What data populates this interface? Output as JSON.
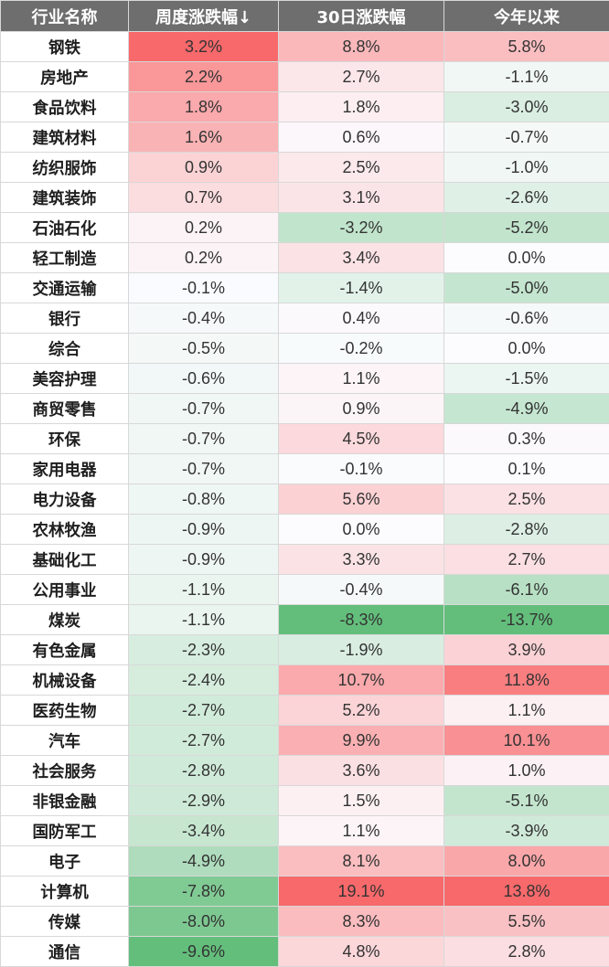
{
  "chart_data": {
    "type": "table",
    "columns": [
      "行业名称",
      "周度涨跌幅↓",
      "30日涨跌幅",
      "今年以来"
    ],
    "rows": [
      {
        "industry": "钢铁",
        "week": "3.2%",
        "d30": "8.8%",
        "ytd": "5.8%"
      },
      {
        "industry": "房地产",
        "week": "2.2%",
        "d30": "2.7%",
        "ytd": "-1.1%"
      },
      {
        "industry": "食品饮料",
        "week": "1.8%",
        "d30": "1.8%",
        "ytd": "-3.0%"
      },
      {
        "industry": "建筑材料",
        "week": "1.6%",
        "d30": "0.6%",
        "ytd": "-0.7%"
      },
      {
        "industry": "纺织服饰",
        "week": "0.9%",
        "d30": "2.5%",
        "ytd": "-1.0%"
      },
      {
        "industry": "建筑装饰",
        "week": "0.7%",
        "d30": "3.1%",
        "ytd": "-2.6%"
      },
      {
        "industry": "石油石化",
        "week": "0.2%",
        "d30": "-3.2%",
        "ytd": "-5.2%"
      },
      {
        "industry": "轻工制造",
        "week": "0.2%",
        "d30": "3.4%",
        "ytd": "0.0%"
      },
      {
        "industry": "交通运输",
        "week": "-0.1%",
        "d30": "-1.4%",
        "ytd": "-5.0%"
      },
      {
        "industry": "银行",
        "week": "-0.4%",
        "d30": "0.4%",
        "ytd": "-0.6%"
      },
      {
        "industry": "综合",
        "week": "-0.5%",
        "d30": "-0.2%",
        "ytd": "0.0%"
      },
      {
        "industry": "美容护理",
        "week": "-0.6%",
        "d30": "1.1%",
        "ytd": "-1.5%"
      },
      {
        "industry": "商贸零售",
        "week": "-0.7%",
        "d30": "0.9%",
        "ytd": "-4.9%"
      },
      {
        "industry": "环保",
        "week": "-0.7%",
        "d30": "4.5%",
        "ytd": "0.3%"
      },
      {
        "industry": "家用电器",
        "week": "-0.7%",
        "d30": "-0.1%",
        "ytd": "0.1%"
      },
      {
        "industry": "电力设备",
        "week": "-0.8%",
        "d30": "5.6%",
        "ytd": "2.5%"
      },
      {
        "industry": "农林牧渔",
        "week": "-0.9%",
        "d30": "0.0%",
        "ytd": "-2.8%"
      },
      {
        "industry": "基础化工",
        "week": "-0.9%",
        "d30": "3.3%",
        "ytd": "2.7%"
      },
      {
        "industry": "公用事业",
        "week": "-1.1%",
        "d30": "-0.4%",
        "ytd": "-6.1%"
      },
      {
        "industry": "煤炭",
        "week": "-1.1%",
        "d30": "-8.3%",
        "ytd": "-13.7%"
      },
      {
        "industry": "有色金属",
        "week": "-2.3%",
        "d30": "-1.9%",
        "ytd": "3.9%"
      },
      {
        "industry": "机械设备",
        "week": "-2.4%",
        "d30": "10.7%",
        "ytd": "11.8%"
      },
      {
        "industry": "医药生物",
        "week": "-2.7%",
        "d30": "5.2%",
        "ytd": "1.1%"
      },
      {
        "industry": "汽车",
        "week": "-2.7%",
        "d30": "9.9%",
        "ytd": "10.1%"
      },
      {
        "industry": "社会服务",
        "week": "-2.8%",
        "d30": "3.6%",
        "ytd": "1.0%"
      },
      {
        "industry": "非银金融",
        "week": "-2.9%",
        "d30": "1.5%",
        "ytd": "-5.1%"
      },
      {
        "industry": "国防军工",
        "week": "-3.4%",
        "d30": "1.1%",
        "ytd": "-3.9%"
      },
      {
        "industry": "电子",
        "week": "-4.9%",
        "d30": "8.1%",
        "ytd": "8.0%"
      },
      {
        "industry": "计算机",
        "week": "-7.8%",
        "d30": "19.1%",
        "ytd": "13.8%"
      },
      {
        "industry": "传媒",
        "week": "-8.0%",
        "d30": "8.3%",
        "ytd": "5.5%"
      },
      {
        "industry": "通信",
        "week": "-9.6%",
        "d30": "4.8%",
        "ytd": "2.8%"
      }
    ],
    "color_scale": {
      "positive": "#f8696b",
      "neutral": "#fcfcff",
      "negative": "#63be7b"
    }
  }
}
